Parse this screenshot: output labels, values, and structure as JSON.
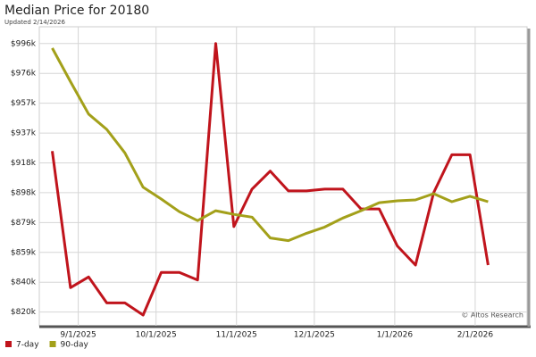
{
  "chart_data": {
    "type": "line",
    "title": "Median Price for 20180",
    "subtitle": "Updated 2/14/2026",
    "credit": "© Altos Research",
    "x": [
      "2025-08-22",
      "2025-08-29",
      "2025-09-05",
      "2025-09-12",
      "2025-09-19",
      "2025-09-26",
      "2025-10-03",
      "2025-10-10",
      "2025-10-17",
      "2025-10-24",
      "2025-10-31",
      "2025-11-07",
      "2025-11-14",
      "2025-11-21",
      "2025-11-28",
      "2025-12-05",
      "2025-12-12",
      "2025-12-19",
      "2025-12-26",
      "2026-01-02",
      "2026-01-09",
      "2026-01-16",
      "2026-01-23",
      "2026-01-30",
      "2026-02-06"
    ],
    "series": [
      {
        "name": "7-day",
        "color": "#c0141c",
        "values": [
          925500,
          836000,
          843000,
          826000,
          826000,
          818000,
          846000,
          846000,
          841000,
          996000,
          876000,
          900600,
          912400,
          899400,
          899400,
          900600,
          900600,
          887600,
          887600,
          863300,
          850800,
          898200,
          923100,
          923100,
          850800
        ]
      },
      {
        "name": "90-day",
        "color": "#a3a01a",
        "values": [
          993000,
          971000,
          949800,
          939700,
          924300,
          901800,
          894100,
          885800,
          879900,
          886400,
          884000,
          882200,
          868600,
          866800,
          871600,
          875700,
          881600,
          886400,
          891700,
          892900,
          893500,
          897600,
          892300,
          895900,
          892300
        ]
      }
    ],
    "xlim": [
      "2025-08-17",
      "2026-02-21"
    ],
    "xticks": [
      {
        "value": "2025-09-01",
        "label": "9/1/2025"
      },
      {
        "value": "2025-10-01",
        "label": "10/1/2025"
      },
      {
        "value": "2025-11-01",
        "label": "11/1/2025"
      },
      {
        "value": "2025-12-01",
        "label": "12/1/2025"
      },
      {
        "value": "2026-01-01",
        "label": "1/1/2026"
      },
      {
        "value": "2026-02-01",
        "label": "2/1/2026"
      }
    ],
    "ylim": [
      811000,
      1007000
    ],
    "yticks": [
      {
        "value": 820000,
        "label": "$820k"
      },
      {
        "value": 839556,
        "label": "$840k"
      },
      {
        "value": 859111,
        "label": "$859k"
      },
      {
        "value": 878667,
        "label": "$879k"
      },
      {
        "value": 898222,
        "label": "$898k"
      },
      {
        "value": 917778,
        "label": "$918k"
      },
      {
        "value": 937333,
        "label": "$937k"
      },
      {
        "value": 956889,
        "label": "$957k"
      },
      {
        "value": 976444,
        "label": "$976k"
      },
      {
        "value": 996000,
        "label": "$996k"
      }
    ],
    "grid": true
  }
}
